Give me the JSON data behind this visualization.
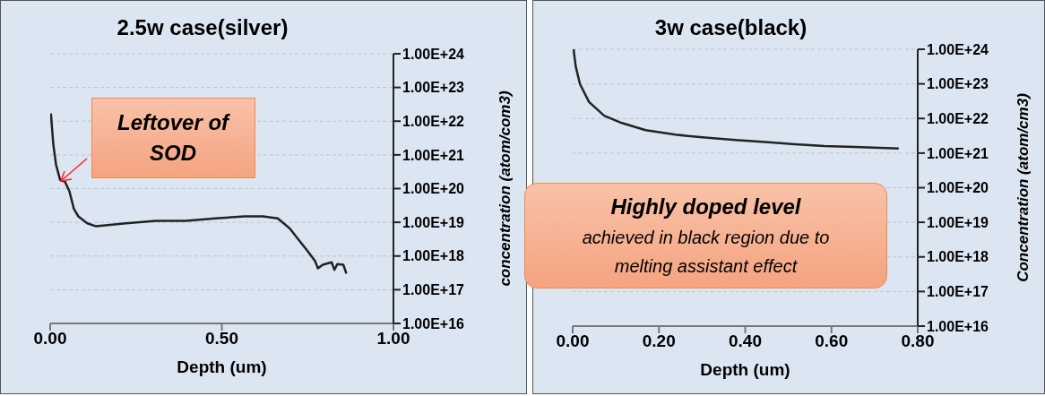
{
  "chart_data": [
    {
      "type": "line",
      "title": "2.5w case(silver)",
      "xlabel": "Depth (um)",
      "ylabel": "concentration (atom/com3)",
      "log": true,
      "grid": "y",
      "xlim": [
        0,
        1
      ],
      "xticks": [
        {
          "value": 0,
          "label": "0.00"
        },
        {
          "value": 0.5,
          "label": "0.50"
        },
        {
          "value": 1,
          "label": "1.00"
        }
      ],
      "ylim": [
        1e+16,
        1e+24
      ],
      "yticks": [
        {
          "value": 1e+16,
          "label": "1.00E+16"
        },
        {
          "value": 1e+17,
          "label": "1.00E+17"
        },
        {
          "value": 1e+18,
          "label": "1.00E+18"
        },
        {
          "value": 1e+19,
          "label": "1.00E+19"
        },
        {
          "value": 1e+20,
          "label": "1.00E+20"
        },
        {
          "value": 1e+21,
          "label": "1.00E+21"
        },
        {
          "value": 1e+22,
          "label": "1.00E+22"
        },
        {
          "value": 1e+23,
          "label": "1.00E+23"
        },
        {
          "value": 1e+24,
          "label": "1.00E+24"
        }
      ],
      "annotations": [
        {
          "text": "Leftover of SOD",
          "x": 0.03,
          "y": 1.8e+20
        }
      ],
      "series": [
        {
          "color": "#222222",
          "x": [
            0.002,
            0.009,
            0.017,
            0.029,
            0.043,
            0.056,
            0.069,
            0.082,
            0.108,
            0.134,
            0.221,
            0.308,
            0.395,
            0.481,
            0.568,
            0.62,
            0.663,
            0.698,
            0.724,
            0.75,
            0.772,
            0.78,
            0.794,
            0.82,
            0.828,
            0.837,
            0.854,
            0.863
          ],
          "values": [
            1.7e+22,
            2.1e+21,
            5.1e+20,
            1.8e+20,
            1.6e+20,
            8.3e+19,
            2.5e+19,
            1.5e+19,
            9.3e+18,
            7.6e+18,
            9.3e+18,
            1.1e+19,
            1.1e+19,
            1.3e+19,
            1.5e+19,
            1.5e+19,
            1.3e+19,
            6.6e+18,
            3e+18,
            1.4e+18,
            7e+17,
            4.3e+17,
            5.5e+17,
            6.5e+17,
            3.9e+17,
            5.8e+17,
            5.5e+17,
            3e+17
          ]
        }
      ]
    },
    {
      "type": "line",
      "title": "3w case(black)",
      "xlabel": "Depth (um)",
      "ylabel": "Concentration (atom/cm3)",
      "log": true,
      "grid": "y",
      "xlim": [
        0,
        0.8
      ],
      "xticks": [
        {
          "value": 0,
          "label": "0.00"
        },
        {
          "value": 0.2,
          "label": "0.20"
        },
        {
          "value": 0.4,
          "label": "0.40"
        },
        {
          "value": 0.6,
          "label": "0.60"
        },
        {
          "value": 0.8,
          "label": "0.80"
        }
      ],
      "ylim": [
        1e+16,
        1e+24
      ],
      "yticks": [
        {
          "value": 1e+16,
          "label": "1.00E+16"
        },
        {
          "value": 1e+17,
          "label": "1.00E+17"
        },
        {
          "value": 1e+18,
          "label": "1.00E+18"
        },
        {
          "value": 1e+19,
          "label": "1.00E+19"
        },
        {
          "value": 1e+20,
          "label": "1.00E+20"
        },
        {
          "value": 1e+21,
          "label": "1.00E+21"
        },
        {
          "value": 1e+22,
          "label": "1.00E+22"
        },
        {
          "value": 1e+23,
          "label": "1.00E+23"
        },
        {
          "value": 1e+24,
          "label": "1.00E+24"
        }
      ],
      "annotations": [
        "Highly doped level",
        "achieved in black region due to melting assistant effect"
      ],
      "series": [
        {
          "color": "#222222",
          "x": [
            0.002,
            0.007,
            0.017,
            0.038,
            0.073,
            0.114,
            0.169,
            0.238,
            0.307,
            0.377,
            0.446,
            0.515,
            0.584,
            0.653,
            0.756
          ],
          "values": [
            1e+24,
            3.2e+23,
            9.8e+22,
            3e+22,
            1.2e+22,
            7.4e+21,
            4.6e+21,
            3.4e+21,
            2.8e+21,
            2.4e+21,
            2.1e+21,
            1.8e+21,
            1.6e+21,
            1.5e+21,
            1.35e+21
          ]
        }
      ]
    }
  ]
}
